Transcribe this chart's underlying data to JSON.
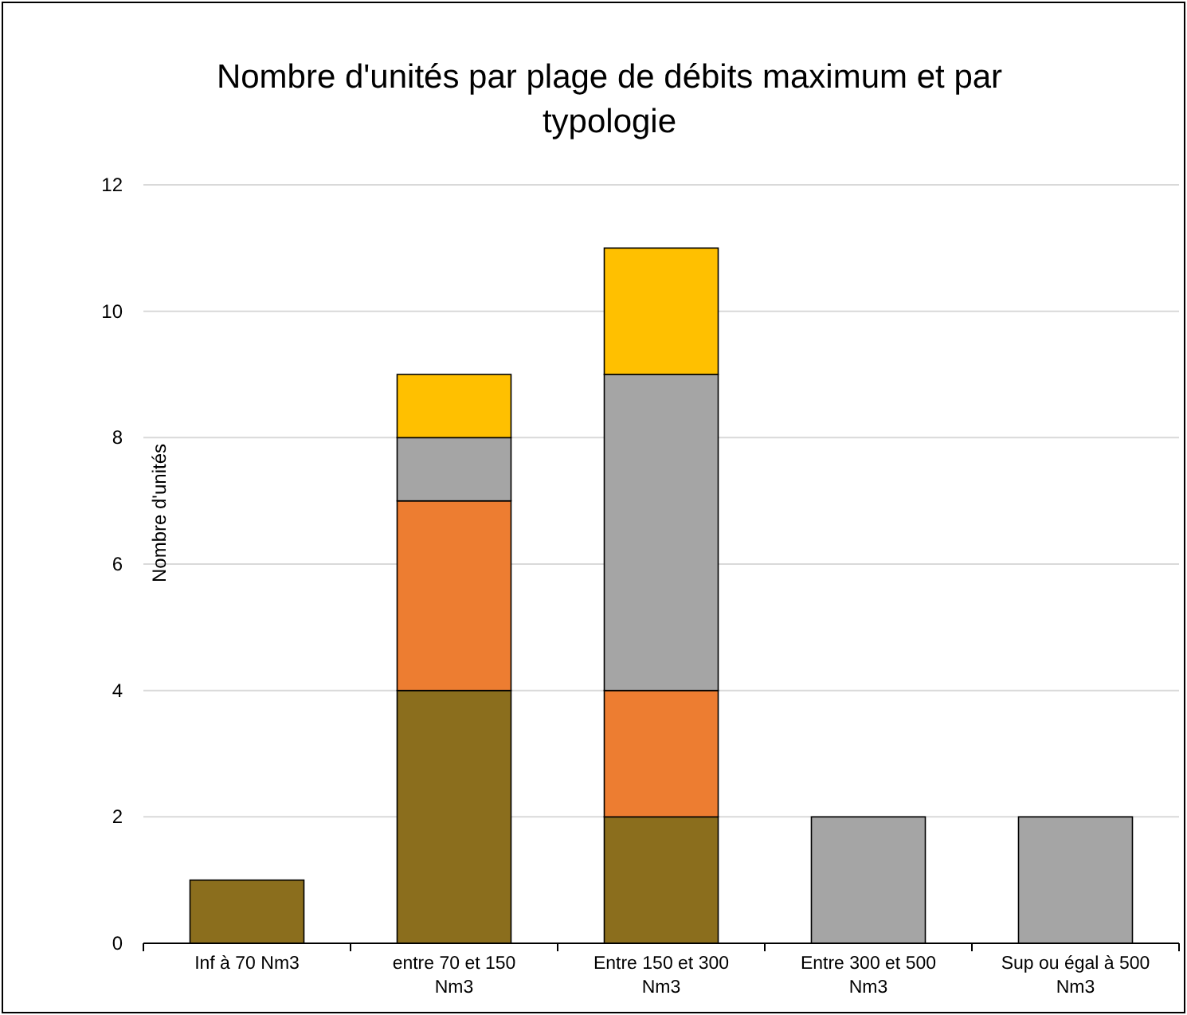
{
  "chart_data": {
    "type": "bar",
    "title": "Nombre d'unités par plage de débits maximum et par typologie",
    "ylabel": "Nombre d'unités",
    "categories": [
      "Inf à 70 Nm3",
      "entre 70 et 150 Nm3",
      "Entre 150 et 300 Nm3",
      "Entre 300 et 500 Nm3",
      "Sup ou égal à 500 Nm3"
    ],
    "stacked": true,
    "series": [
      {
        "color": "#8b6e1d",
        "values": [
          1,
          4,
          2,
          null,
          null
        ]
      },
      {
        "color": "#ed7d31",
        "values": [
          null,
          3,
          2,
          null,
          null
        ]
      },
      {
        "color": "#a5a5a5",
        "values": [
          null,
          1,
          5,
          2,
          2
        ]
      },
      {
        "color": "#ffc000",
        "values": [
          null,
          1,
          2,
          null,
          null
        ]
      }
    ],
    "ylim": [
      0,
      12
    ],
    "yticks": [
      0,
      2,
      4,
      6,
      8,
      10,
      12
    ],
    "grid": "y"
  }
}
